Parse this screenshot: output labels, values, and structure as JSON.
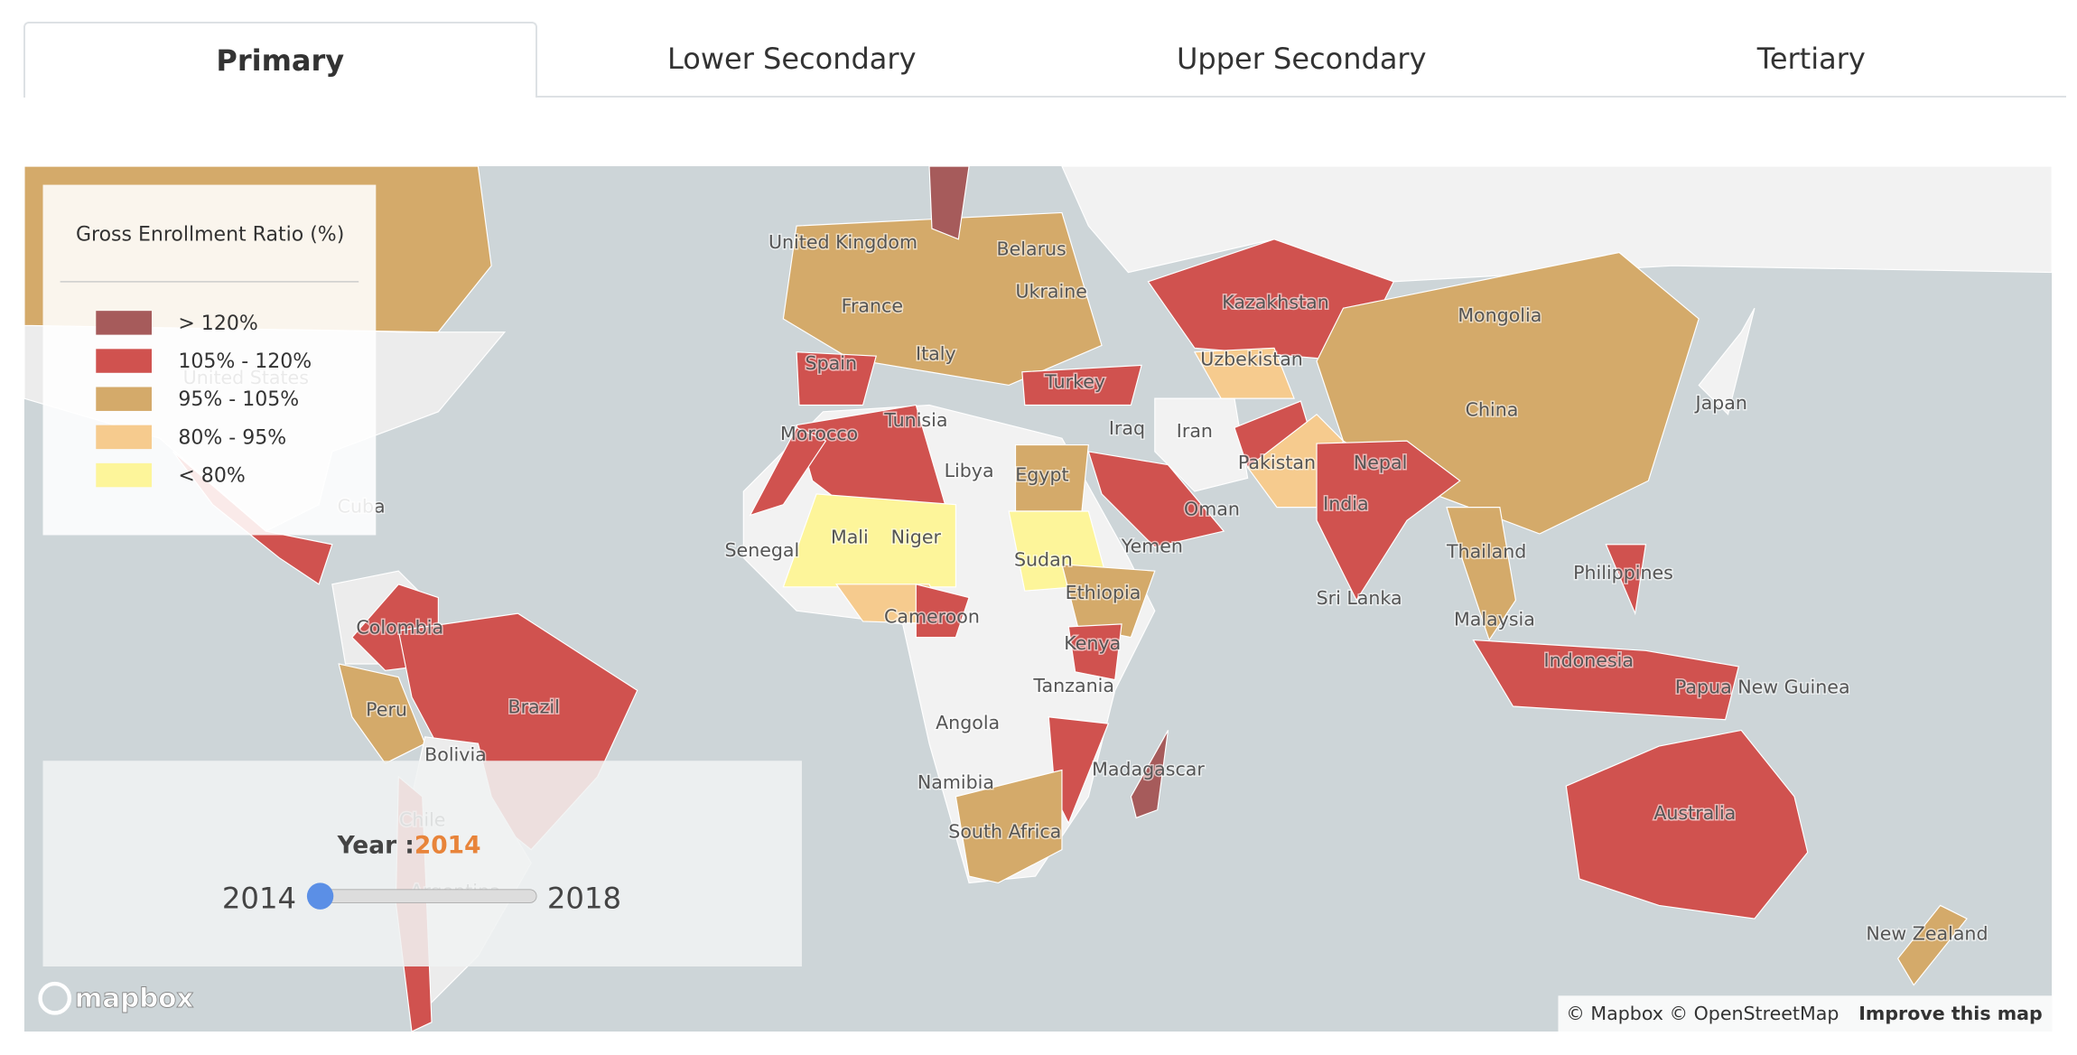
{
  "tabs": [
    {
      "label": "Primary",
      "active": true
    },
    {
      "label": "Lower Secondary",
      "active": false
    },
    {
      "label": "Upper Secondary",
      "active": false
    },
    {
      "label": "Tertiary",
      "active": false
    }
  ],
  "legend": {
    "title": "Gross Enrollment Ratio (%)",
    "items": [
      {
        "label": "> 120%",
        "color": "#a65b5b"
      },
      {
        "label": "105% - 120%",
        "color": "#d0524f"
      },
      {
        "label": "95% - 105%",
        "color": "#d4aa6a"
      },
      {
        "label": "80% - 95%",
        "color": "#f6cb8e"
      },
      {
        "label": "< 80%",
        "color": "#fdf59a"
      }
    ]
  },
  "map_labels": [
    "United States",
    "United Kingdom",
    "Belarus",
    "Ukraine",
    "France",
    "Italy",
    "Spain",
    "Kazakhstan",
    "Mongolia",
    "Uzbekistan",
    "Turkey",
    "Morocco",
    "Tunisia",
    "Iraq",
    "Iran",
    "China",
    "Japan",
    "Libya",
    "Egypt",
    "Pakistan",
    "Nepal",
    "Cuba",
    "India",
    "Oman",
    "Mali",
    "Niger",
    "Senegal",
    "Sudan",
    "Yemen",
    "Thailand",
    "Philippines",
    "Ethiopia",
    "Sri Lanka",
    "Cameroon",
    "Malaysia",
    "Colombia",
    "Kenya",
    "Indonesia",
    "Papua New Guinea",
    "Brazil",
    "Tanzania",
    "Peru",
    "Angola",
    "Bolivia",
    "Madagascar",
    "Namibia",
    "Australia",
    "Chile",
    "South Africa",
    "Argentina",
    "New Zealand"
  ],
  "slider": {
    "label": "Year :",
    "value": "2014",
    "min": "2014",
    "max": "2018"
  },
  "logo": "mapbox",
  "attribution": {
    "text": "© Mapbox © OpenStreetMap",
    "link": "Improve this map"
  }
}
